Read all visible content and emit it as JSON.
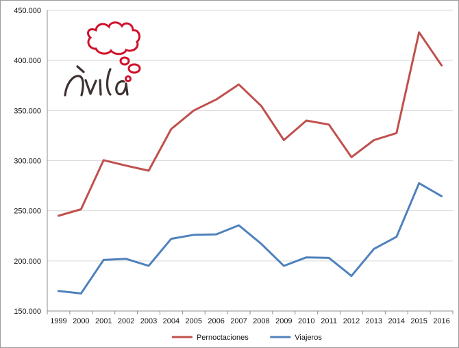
{
  "chart_data": {
    "type": "line",
    "categories": [
      "1999",
      "2000",
      "2001",
      "2002",
      "2003",
      "2004",
      "2005",
      "2006",
      "2007",
      "2008",
      "2009",
      "2010",
      "2011",
      "2012",
      "2013",
      "2014",
      "2015",
      "2016"
    ],
    "series": [
      {
        "name": "Pernoctaciones",
        "color": "#c0504d",
        "values": [
          245000,
          251500,
          300500,
          295000,
          290000,
          331500,
          350000,
          361000,
          376000,
          354500,
          320500,
          340000,
          336000,
          303500,
          320500,
          327500,
          428000,
          395000
        ]
      },
      {
        "name": "Viajeros",
        "color": "#4f81bd",
        "values": [
          170000,
          167500,
          201000,
          202000,
          195000,
          222000,
          226000,
          226500,
          235500,
          217000,
          195000,
          203500,
          203000,
          185000,
          212000,
          224000,
          277500,
          264500
        ]
      }
    ],
    "yticks": [
      "150.000",
      "200.000",
      "250.000",
      "300.000",
      "350.000",
      "400.000",
      "450.000"
    ],
    "ylim": [
      150000,
      450000
    ],
    "grid": true,
    "legend_position": "bottom",
    "title": "",
    "xlabel": "",
    "ylabel": ""
  },
  "logo": {
    "text": "Ávila",
    "bubble_color": "#d0112b",
    "text_color": "#3d3230",
    "icon": "thought-bubble-icon"
  }
}
